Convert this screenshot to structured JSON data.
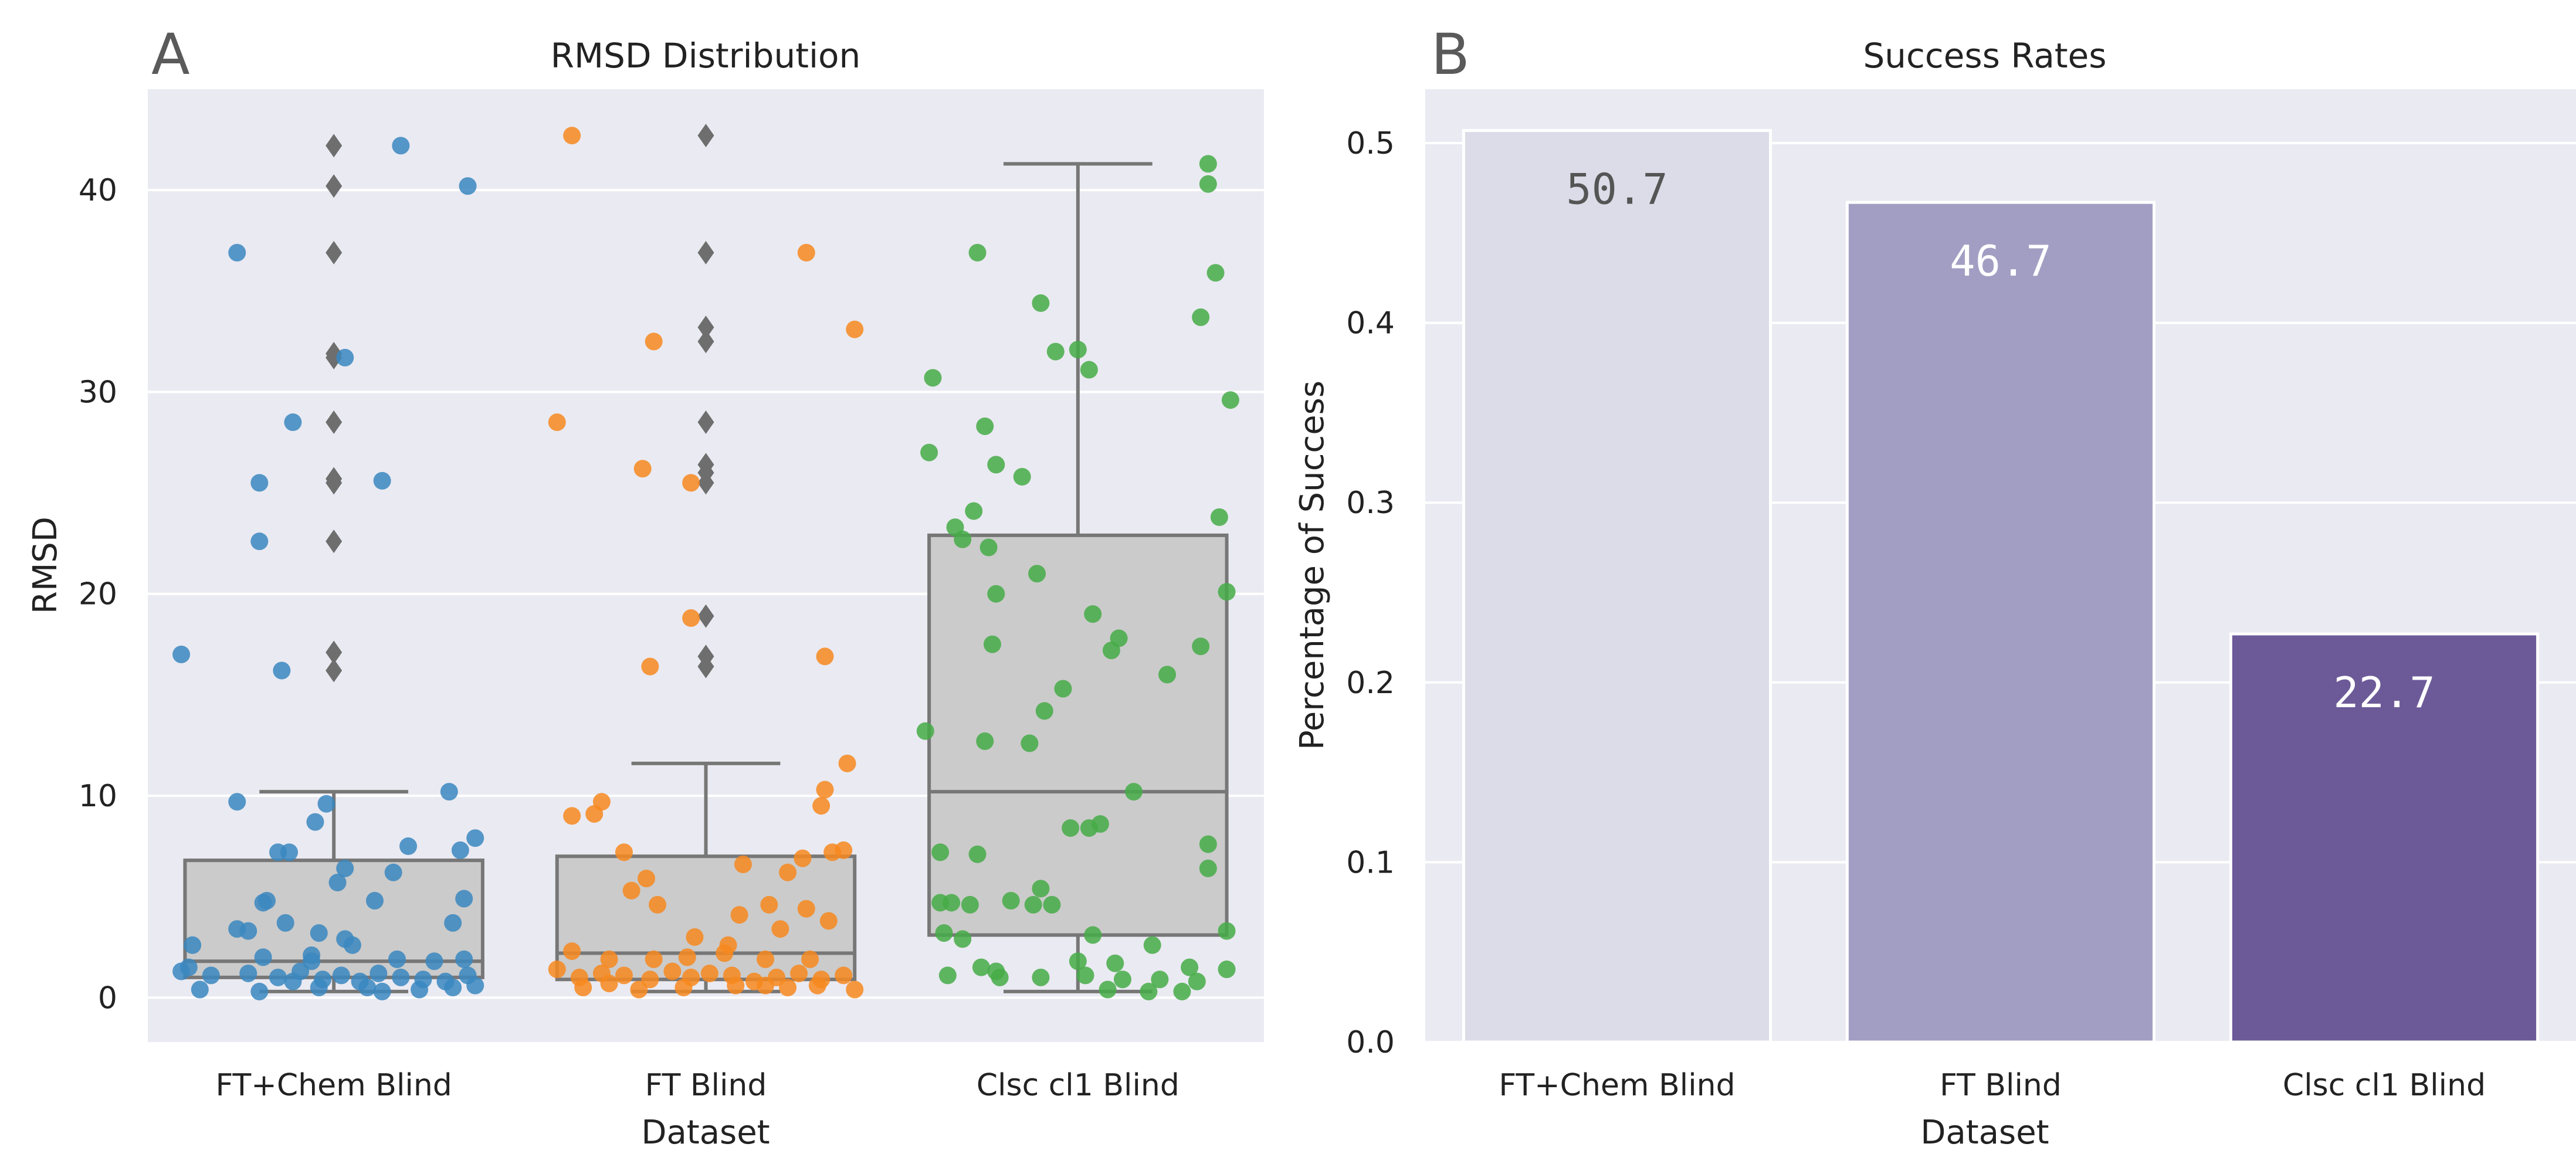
{
  "colors": {
    "panel_bg": "#eaeaf2",
    "grid": "#ffffff",
    "box_fill": "#cbcbcb",
    "box_edge": "#777777",
    "outlier": "#6e6e6e",
    "points": [
      "#3a87c0",
      "#f7881e",
      "#45ab47"
    ],
    "bars": [
      "#dcdce8",
      "#a29ec3",
      "#6c5a98"
    ],
    "bar_labels": [
      "#555555",
      "#ffffff",
      "#ffffff"
    ]
  },
  "chart_data": [
    {
      "panel_label": "A",
      "type": "box+strip",
      "title": "RMSD Distribution",
      "xlabel": "Dataset",
      "ylabel": "RMSD",
      "categories": [
        "FT+Chem Blind",
        "FT Blind",
        "Clsc cl1 Blind"
      ],
      "ylim": [
        -2.2,
        45
      ],
      "yticks": [
        0,
        10,
        20,
        30,
        40
      ],
      "boxes": [
        {
          "q1": 1.0,
          "median": 1.8,
          "q3": 6.8,
          "whisker_low": 0.3,
          "whisker_high": 10.2,
          "outliers": [
            16.2,
            17.1,
            22.6,
            25.5,
            25.7,
            28.5,
            31.7,
            31.9,
            36.9,
            40.2,
            42.2
          ]
        },
        {
          "q1": 0.9,
          "median": 2.2,
          "q3": 7.0,
          "whisker_low": 0.3,
          "whisker_high": 11.6,
          "outliers": [
            16.4,
            16.9,
            18.9,
            25.5,
            26.0,
            26.4,
            28.5,
            32.5,
            33.2,
            36.9,
            42.7
          ]
        },
        {
          "q1": 3.1,
          "median": 10.2,
          "q3": 22.9,
          "whisker_low": 0.3,
          "whisker_high": 41.3,
          "outliers": []
        }
      ],
      "points": [
        [
          [
            -0.41,
            17.0
          ],
          [
            -0.26,
            36.9
          ],
          [
            -0.2,
            22.6
          ],
          [
            -0.2,
            25.5
          ],
          [
            -0.14,
            16.2
          ],
          [
            -0.11,
            28.5
          ],
          [
            0.03,
            31.7
          ],
          [
            0.13,
            25.6
          ],
          [
            0.18,
            42.2
          ],
          [
            0.36,
            40.2
          ],
          [
            0.31,
            10.2
          ],
          [
            -0.26,
            9.7
          ],
          [
            -0.05,
            8.7
          ],
          [
            -0.02,
            9.6
          ],
          [
            -0.15,
            7.2
          ],
          [
            -0.12,
            7.2
          ],
          [
            0.2,
            7.5
          ],
          [
            0.38,
            7.9
          ],
          [
            0.34,
            7.3
          ],
          [
            0.03,
            6.4
          ],
          [
            0.16,
            6.2
          ],
          [
            0.01,
            5.7
          ],
          [
            -0.18,
            4.8
          ],
          [
            -0.19,
            4.7
          ],
          [
            0.11,
            4.8
          ],
          [
            0.35,
            4.9
          ],
          [
            -0.26,
            3.4
          ],
          [
            -0.23,
            3.3
          ],
          [
            -0.13,
            3.7
          ],
          [
            0.32,
            3.7
          ],
          [
            -0.04,
            3.2
          ],
          [
            -0.38,
            2.6
          ],
          [
            0.03,
            2.9
          ],
          [
            0.05,
            2.6
          ],
          [
            -0.19,
            2.0
          ],
          [
            -0.06,
            2.1
          ],
          [
            -0.06,
            1.8
          ],
          [
            0.17,
            1.9
          ],
          [
            0.27,
            1.8
          ],
          [
            0.35,
            1.9
          ],
          [
            -0.41,
            1.3
          ],
          [
            -0.39,
            1.5
          ],
          [
            -0.33,
            1.1
          ],
          [
            -0.23,
            1.2
          ],
          [
            -0.15,
            1.0
          ],
          [
            -0.09,
            1.3
          ],
          [
            -0.03,
            0.9
          ],
          [
            0.02,
            1.1
          ],
          [
            0.07,
            0.8
          ],
          [
            0.12,
            1.2
          ],
          [
            0.18,
            1.0
          ],
          [
            0.24,
            0.9
          ],
          [
            0.3,
            0.8
          ],
          [
            0.36,
            1.1
          ],
          [
            -0.36,
            0.4
          ],
          [
            -0.2,
            0.3
          ],
          [
            -0.04,
            0.5
          ],
          [
            0.13,
            0.3
          ],
          [
            0.23,
            0.4
          ],
          [
            0.32,
            0.5
          ],
          [
            0.38,
            0.6
          ],
          [
            -0.11,
            0.8
          ],
          [
            0.09,
            0.5
          ]
        ],
        [
          [
            -0.4,
            28.5
          ],
          [
            -0.36,
            42.7
          ],
          [
            -0.14,
            32.5
          ],
          [
            -0.17,
            26.2
          ],
          [
            -0.04,
            25.5
          ],
          [
            -0.04,
            18.8
          ],
          [
            -0.15,
            16.4
          ],
          [
            0.27,
            36.9
          ],
          [
            0.4,
            33.1
          ],
          [
            0.32,
            16.9
          ],
          [
            0.38,
            11.6
          ],
          [
            -0.36,
            9.0
          ],
          [
            -0.3,
            9.1
          ],
          [
            -0.28,
            9.7
          ],
          [
            -0.22,
            7.2
          ],
          [
            -0.16,
            5.9
          ],
          [
            0.1,
            6.6
          ],
          [
            0.22,
            6.2
          ],
          [
            0.26,
            6.9
          ],
          [
            0.31,
            9.5
          ],
          [
            0.32,
            10.3
          ],
          [
            0.34,
            7.2
          ],
          [
            0.37,
            7.3
          ],
          [
            -0.2,
            5.3
          ],
          [
            -0.13,
            4.6
          ],
          [
            0.09,
            4.1
          ],
          [
            0.17,
            4.6
          ],
          [
            0.27,
            4.4
          ],
          [
            0.2,
            3.4
          ],
          [
            0.33,
            3.8
          ],
          [
            -0.03,
            3.0
          ],
          [
            0.06,
            2.6
          ],
          [
            -0.36,
            2.3
          ],
          [
            -0.26,
            1.9
          ],
          [
            -0.14,
            1.9
          ],
          [
            -0.05,
            2.0
          ],
          [
            0.05,
            2.2
          ],
          [
            0.16,
            1.9
          ],
          [
            0.28,
            1.9
          ],
          [
            -0.4,
            1.4
          ],
          [
            -0.34,
            1.0
          ],
          [
            -0.28,
            1.2
          ],
          [
            -0.22,
            1.1
          ],
          [
            -0.15,
            0.9
          ],
          [
            -0.09,
            1.3
          ],
          [
            -0.04,
            1.0
          ],
          [
            0.01,
            1.2
          ],
          [
            0.07,
            1.1
          ],
          [
            0.13,
            0.8
          ],
          [
            0.19,
            1.0
          ],
          [
            0.25,
            1.2
          ],
          [
            0.31,
            0.9
          ],
          [
            0.37,
            1.1
          ],
          [
            -0.33,
            0.5
          ],
          [
            -0.18,
            0.4
          ],
          [
            -0.06,
            0.5
          ],
          [
            0.08,
            0.6
          ],
          [
            0.22,
            0.5
          ],
          [
            0.3,
            0.6
          ],
          [
            0.4,
            0.4
          ],
          [
            -0.26,
            0.7
          ],
          [
            0.16,
            0.6
          ]
        ],
        [
          [
            -0.39,
            30.7
          ],
          [
            -0.33,
            23.3
          ],
          [
            -0.31,
            22.7
          ],
          [
            -0.28,
            24.1
          ],
          [
            -0.25,
            28.3
          ],
          [
            -0.22,
            26.4
          ],
          [
            -0.15,
            25.8
          ],
          [
            -0.1,
            34.4
          ],
          [
            -0.06,
            32.0
          ],
          [
            0.0,
            32.1
          ],
          [
            0.03,
            31.1
          ],
          [
            0.33,
            33.7
          ],
          [
            0.37,
            35.9
          ],
          [
            0.41,
            29.6
          ],
          [
            0.35,
            40.3
          ],
          [
            0.35,
            41.3
          ],
          [
            0.38,
            23.8
          ],
          [
            -0.27,
            36.9
          ],
          [
            -0.4,
            27.0
          ],
          [
            -0.24,
            22.3
          ],
          [
            -0.22,
            20.0
          ],
          [
            -0.11,
            21.0
          ],
          [
            0.04,
            19.0
          ],
          [
            -0.04,
            15.3
          ],
          [
            -0.09,
            14.2
          ],
          [
            0.11,
            17.8
          ],
          [
            0.09,
            17.2
          ],
          [
            0.33,
            17.4
          ],
          [
            0.4,
            20.1
          ],
          [
            0.24,
            16.0
          ],
          [
            -0.23,
            17.5
          ],
          [
            -0.41,
            13.2
          ],
          [
            -0.25,
            12.7
          ],
          [
            -0.13,
            12.6
          ],
          [
            0.15,
            10.2
          ],
          [
            0.35,
            7.6
          ],
          [
            0.35,
            6.4
          ],
          [
            -0.37,
            7.2
          ],
          [
            -0.27,
            7.1
          ],
          [
            -0.18,
            4.8
          ],
          [
            -0.02,
            8.4
          ],
          [
            0.03,
            8.4
          ],
          [
            0.06,
            8.6
          ],
          [
            -0.29,
            4.6
          ],
          [
            -0.34,
            4.7
          ],
          [
            -0.37,
            4.7
          ],
          [
            -0.1,
            5.4
          ],
          [
            -0.07,
            4.6
          ],
          [
            -0.12,
            4.6
          ],
          [
            0.4,
            3.3
          ],
          [
            -0.36,
            3.2
          ],
          [
            -0.31,
            2.9
          ],
          [
            0.04,
            3.1
          ],
          [
            0.2,
            2.6
          ],
          [
            0.1,
            1.7
          ],
          [
            0.0,
            1.8
          ],
          [
            -0.22,
            1.3
          ],
          [
            -0.26,
            1.5
          ],
          [
            0.3,
            1.5
          ],
          [
            0.4,
            1.4
          ],
          [
            -0.35,
            1.1
          ],
          [
            -0.21,
            1.0
          ],
          [
            -0.1,
            1.0
          ],
          [
            0.02,
            1.1
          ],
          [
            0.12,
            0.9
          ],
          [
            0.22,
            0.9
          ],
          [
            0.32,
            0.8
          ],
          [
            0.08,
            0.4
          ],
          [
            0.19,
            0.3
          ],
          [
            0.28,
            0.3
          ]
        ]
      ]
    },
    {
      "panel_label": "B",
      "type": "bar",
      "title": "Success Rates",
      "xlabel": "Dataset",
      "ylabel": "Percentage of Success",
      "categories": [
        "FT+Chem Blind",
        "FT Blind",
        "Clsc cl1 Blind"
      ],
      "values": [
        0.507,
        0.467,
        0.227
      ],
      "value_labels": [
        "50.7",
        "46.7",
        "22.7"
      ],
      "ylim": [
        0,
        0.53
      ],
      "yticks": [
        "0.0",
        "0.1",
        "0.2",
        "0.3",
        "0.4",
        "0.5"
      ]
    }
  ]
}
